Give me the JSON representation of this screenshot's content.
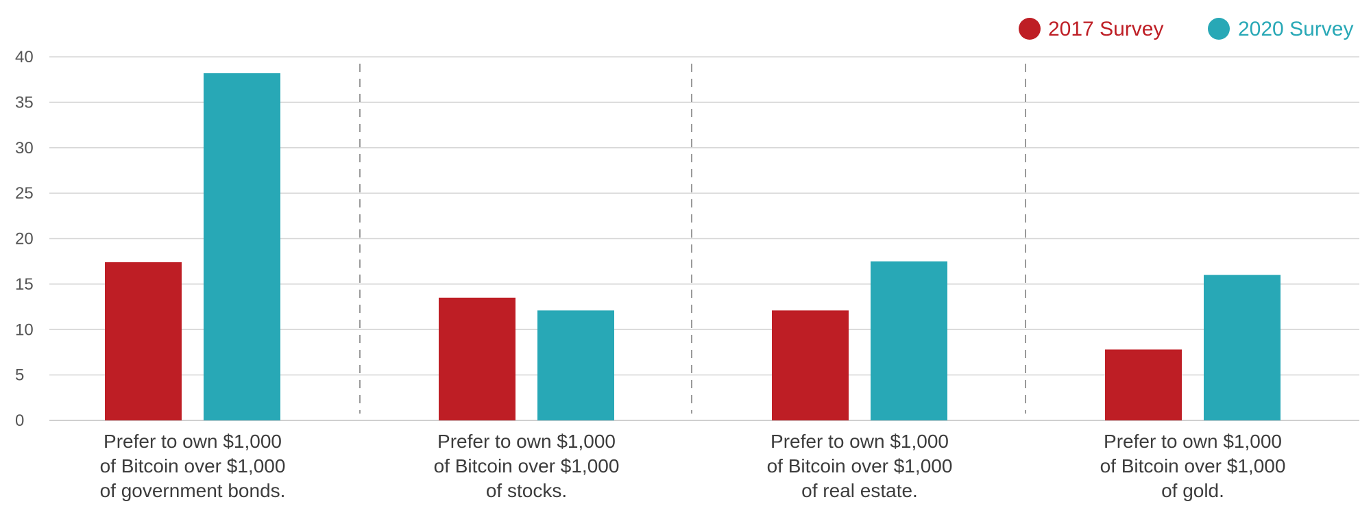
{
  "chart_data": {
    "type": "bar",
    "categories": [
      [
        "Prefer to own $1,000",
        "of Bitcoin over $1,000",
        "of government bonds."
      ],
      [
        "Prefer to own $1,000",
        "of Bitcoin over $1,000",
        "of stocks."
      ],
      [
        "Prefer to own $1,000",
        "of Bitcoin over $1,000",
        "of real estate."
      ],
      [
        "Prefer to own $1,000",
        "of Bitcoin over $1,000",
        "of gold."
      ]
    ],
    "series": [
      {
        "name": "2017 Survey",
        "color": "#be1e25",
        "values": [
          17.4,
          13.5,
          12.1,
          7.8
        ]
      },
      {
        "name": "2020 Survey",
        "color": "#28a8b6",
        "values": [
          38.2,
          12.1,
          17.5,
          16.0
        ]
      }
    ],
    "ylim": [
      0,
      40
    ],
    "yticks": [
      0,
      5,
      10,
      15,
      20,
      25,
      30,
      35,
      40
    ],
    "grid": true,
    "legend_position": "top-right",
    "title": "",
    "xlabel": "",
    "ylabel": ""
  }
}
